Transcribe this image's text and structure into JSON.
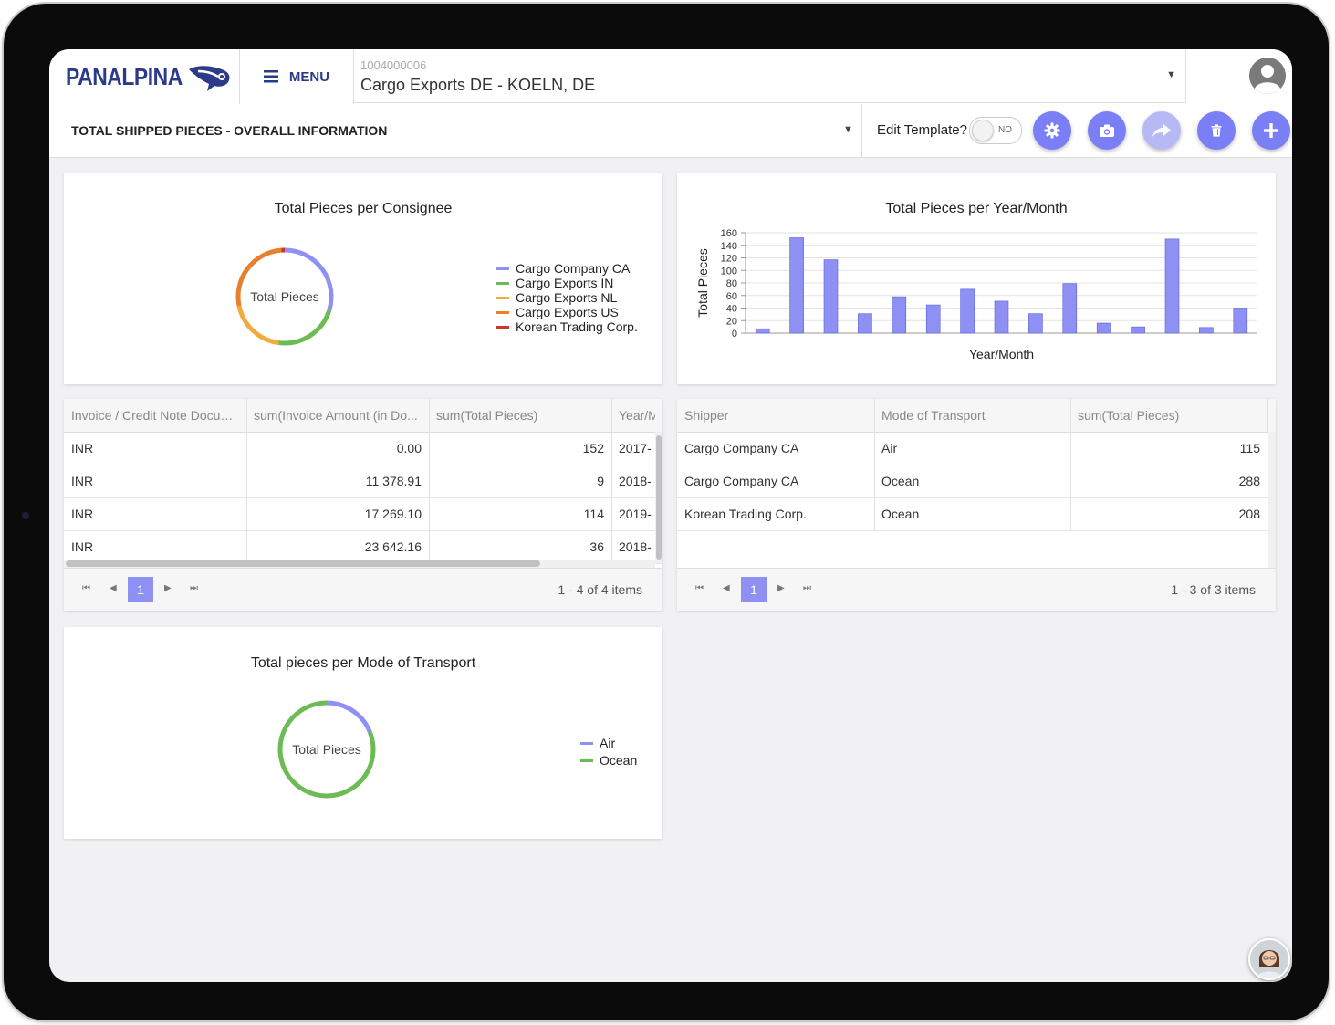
{
  "app": {
    "logo_text": "PANALPINA",
    "menu_label": "MENU"
  },
  "company": {
    "code": "1004000006",
    "name": "Cargo Exports DE - KOELN, DE"
  },
  "toolbar": {
    "view_title": "TOTAL SHIPPED PIECES - OVERALL INFORMATION",
    "edit_label": "Edit Template?",
    "toggle_value": "NO"
  },
  "colors": {
    "accent": "#7b7ff5",
    "brand": "#2c3a8a",
    "bar": "#8e91f3"
  },
  "consignee_chart": {
    "title": "Total Pieces per Consignee",
    "center_label": "Total Pieces",
    "chart_data": {
      "type": "pie",
      "labels": [
        "Cargo Company CA",
        "Cargo Exports IN",
        "Cargo Exports NL",
        "Cargo Exports US",
        "Korean Trading Corp."
      ],
      "values": [
        152,
        114,
        101,
        138,
        6
      ],
      "colors": [
        "#8e91f3",
        "#6cbb54",
        "#f0ac3c",
        "#e8802f",
        "#c8382b"
      ],
      "legend": "right"
    }
  },
  "month_chart": {
    "title": "Total Pieces per Year/Month",
    "chart_data": {
      "type": "bar",
      "categories": [
        "",
        "",
        "",
        "",
        "",
        "",
        "",
        "",
        "",
        "",
        "",
        "",
        "",
        "",
        ""
      ],
      "values": [
        7,
        152,
        117,
        31,
        58,
        45,
        70,
        51,
        31,
        79,
        16,
        10,
        150,
        9,
        40
      ],
      "xlabel": "Year/Month",
      "ylabel": "Total Pieces",
      "ylim": [
        0,
        160
      ],
      "yticks": [
        "0",
        "20",
        "40",
        "60",
        "80",
        "100",
        "120",
        "140",
        "160"
      ],
      "grid": true
    }
  },
  "invoice_grid": {
    "columns": [
      "Invoice / Credit Note Docum...",
      "sum(Invoice Amount (in Do...",
      "sum(Total Pieces)",
      "Year/M"
    ],
    "rows": [
      [
        "INR",
        "0.00",
        "152",
        "2017-"
      ],
      [
        "INR",
        "11 378.91",
        "9",
        "2018-"
      ],
      [
        "INR",
        "17 269.10",
        "114",
        "2019-"
      ],
      [
        "INR",
        "23 642.16",
        "36",
        "2018-"
      ]
    ],
    "page": "1",
    "info": "1 - 4 of 4 items"
  },
  "shipper_grid": {
    "columns": [
      "Shipper",
      "Mode of Transport",
      "sum(Total Pieces)"
    ],
    "rows": [
      [
        "Cargo Company CA",
        "Air",
        "115"
      ],
      [
        "Cargo Company CA",
        "Ocean",
        "288"
      ],
      [
        "Korean Trading Corp.",
        "Ocean",
        "208"
      ]
    ],
    "page": "1",
    "info": "1 - 3 of 3 items"
  },
  "transport_chart": {
    "title": "Total pieces per Mode of Transport",
    "center_label": "Total Pieces",
    "chart_data": {
      "type": "pie",
      "labels": [
        "Air",
        "Ocean"
      ],
      "values": [
        115,
        496
      ],
      "colors": [
        "#8e91f3",
        "#6cbb54"
      ],
      "legend": "right"
    }
  }
}
